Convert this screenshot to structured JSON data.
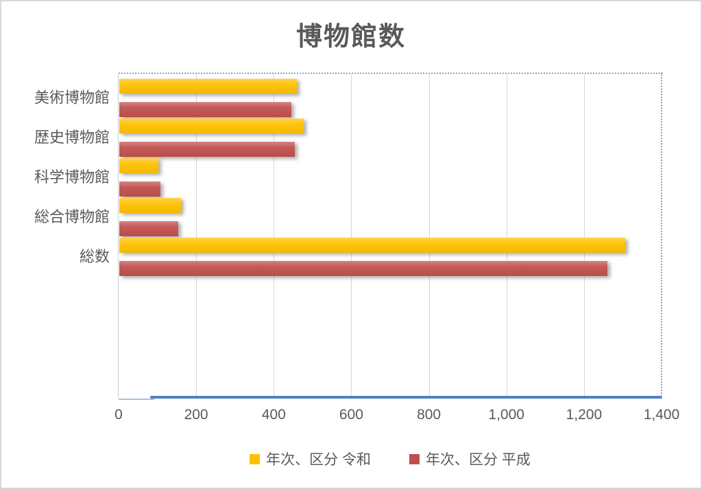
{
  "title": "博物館数",
  "chart_data": {
    "type": "bar",
    "orientation": "horizontal",
    "title": "博物館数",
    "categories": [
      "美術博物館",
      "歴史博物館",
      "科学博物館",
      "総合博物館",
      "総数"
    ],
    "series": [
      {
        "name": "年次、区分 令和",
        "color": "#FFC000",
        "values": [
          457,
          476,
          100,
          159,
          1305
        ]
      },
      {
        "name": "年次、区分 平成",
        "color": "#C0504D",
        "values": [
          443,
          452,
          106,
          152,
          1258
        ]
      }
    ],
    "xlim": [
      0,
      1400
    ],
    "xticks": [
      0,
      200,
      400,
      600,
      800,
      1000,
      1200,
      1400
    ],
    "xtick_labels": [
      "0",
      "200",
      "400",
      "600",
      "800",
      "1,000",
      "1,200",
      "1,400"
    ],
    "grid": true,
    "legend_position": "bottom"
  },
  "colors": {
    "series_reiwa": "#FFC000",
    "series_heisei": "#C0504D",
    "value_axis_line": "#4F81BD",
    "text": "#595959",
    "gridline": "#D9D9D9",
    "plot_border_dotted": "#7DA3D6",
    "chart_border": "#D9D9D9"
  }
}
